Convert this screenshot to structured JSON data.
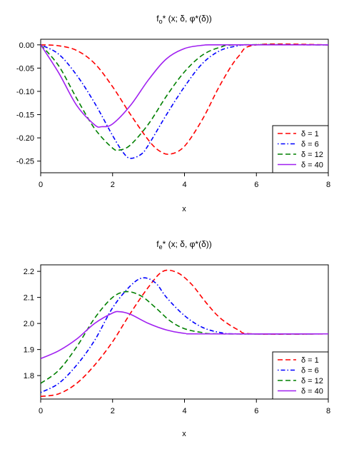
{
  "chart_data": [
    {
      "type": "line",
      "title": "f",
      "title_sub": "o",
      "title_rest": "* (x; δ, φ*(δ))",
      "xlabel": "x",
      "ylabel": "",
      "xlim": [
        0,
        8
      ],
      "ylim": [
        -0.275,
        0.012
      ],
      "xticks": [
        0,
        2,
        4,
        6,
        8
      ],
      "yticks": [
        0.0,
        -0.05,
        -0.1,
        -0.15,
        -0.2,
        -0.25
      ],
      "ytick_labels": [
        "0.00",
        "-0.05",
        "-0.10",
        "-0.15",
        "-0.20",
        "-0.25"
      ],
      "grid": false,
      "legend_position": "bottom-right",
      "series": [
        {
          "name": "δ = 1",
          "color": "#ff0000",
          "dash": "dashed",
          "x": [
            0,
            0.5,
            1,
            1.5,
            2,
            2.5,
            3,
            3.3,
            3.6,
            4,
            4.5,
            5,
            5.5,
            6,
            8
          ],
          "y": [
            0,
            -0.002,
            -0.012,
            -0.04,
            -0.09,
            -0.15,
            -0.205,
            -0.228,
            -0.235,
            -0.218,
            -0.16,
            -0.085,
            -0.025,
            0,
            0
          ]
        },
        {
          "name": "δ = 6",
          "color": "#0000ff",
          "dash": "dotdash",
          "x": [
            0,
            0.5,
            1,
            1.5,
            2,
            2.3,
            2.5,
            2.8,
            3,
            3.5,
            4,
            4.5,
            5,
            5.5,
            5.8,
            8
          ],
          "y": [
            0,
            -0.02,
            -0.065,
            -0.125,
            -0.195,
            -0.232,
            -0.244,
            -0.235,
            -0.215,
            -0.15,
            -0.09,
            -0.04,
            -0.012,
            -0.002,
            0,
            0
          ]
        },
        {
          "name": "δ = 12",
          "color": "#008000",
          "dash": "dashed",
          "x": [
            0,
            0.5,
            1,
            1.5,
            2,
            2.2,
            2.5,
            3,
            3.5,
            4,
            4.5,
            5,
            5.5,
            8
          ],
          "y": [
            0,
            -0.045,
            -0.115,
            -0.18,
            -0.222,
            -0.226,
            -0.215,
            -0.17,
            -0.11,
            -0.058,
            -0.022,
            -0.005,
            0,
            0
          ]
        },
        {
          "name": "δ = 40",
          "color": "#a020f0",
          "dash": "solid",
          "x": [
            0,
            0.5,
            1,
            1.5,
            1.7,
            2,
            2.5,
            3,
            3.5,
            4,
            4.5,
            5,
            8
          ],
          "y": [
            0,
            -0.06,
            -0.13,
            -0.172,
            -0.176,
            -0.17,
            -0.13,
            -0.075,
            -0.03,
            -0.008,
            -0.001,
            0,
            0
          ]
        }
      ]
    },
    {
      "type": "line",
      "title": "f",
      "title_sub": "e",
      "title_rest": "* (x; δ, φ*(δ))",
      "xlabel": "x",
      "ylabel": "",
      "xlim": [
        0,
        8
      ],
      "ylim": [
        1.71,
        2.225
      ],
      "xticks": [
        0,
        2,
        4,
        6,
        8
      ],
      "yticks": [
        1.8,
        1.9,
        2.0,
        2.1,
        2.2
      ],
      "ytick_labels": [
        "1.8",
        "1.9",
        "2.0",
        "2.1",
        "2.2"
      ],
      "grid": false,
      "legend_position": "bottom-right",
      "series": [
        {
          "name": "δ = 1",
          "color": "#ff0000",
          "dash": "dashed",
          "x": [
            0,
            0.5,
            1,
            1.5,
            2,
            2.5,
            3,
            3.4,
            3.8,
            4.2,
            4.6,
            5,
            5.5,
            5.9,
            8
          ],
          "y": [
            1.72,
            1.73,
            1.77,
            1.84,
            1.93,
            2.04,
            2.14,
            2.2,
            2.195,
            2.15,
            2.08,
            2.02,
            1.975,
            1.96,
            1.96
          ]
        },
        {
          "name": "δ = 6",
          "color": "#0000ff",
          "dash": "dotdash",
          "x": [
            0,
            0.5,
            1,
            1.5,
            2,
            2.5,
            2.85,
            3.2,
            3.5,
            4,
            4.5,
            5,
            5.5,
            8
          ],
          "y": [
            1.735,
            1.77,
            1.84,
            1.935,
            2.06,
            2.145,
            2.175,
            2.155,
            2.1,
            2.03,
            1.985,
            1.965,
            1.96,
            1.96
          ]
        },
        {
          "name": "δ = 12",
          "color": "#008000",
          "dash": "dashed",
          "x": [
            0,
            0.5,
            1,
            1.5,
            2,
            2.4,
            2.8,
            3.2,
            3.6,
            4,
            4.5,
            5,
            8
          ],
          "y": [
            1.77,
            1.82,
            1.91,
            2.02,
            2.1,
            2.122,
            2.105,
            2.06,
            2.01,
            1.98,
            1.965,
            1.96,
            1.96
          ]
        },
        {
          "name": "δ = 40",
          "color": "#a020f0",
          "dash": "solid",
          "x": [
            0,
            0.5,
            1,
            1.5,
            2,
            2.2,
            2.5,
            3,
            3.5,
            4,
            4.5,
            8
          ],
          "y": [
            1.865,
            1.895,
            1.94,
            2.0,
            2.04,
            2.045,
            2.035,
            2.0,
            1.975,
            1.962,
            1.96,
            1.96
          ]
        }
      ]
    }
  ]
}
